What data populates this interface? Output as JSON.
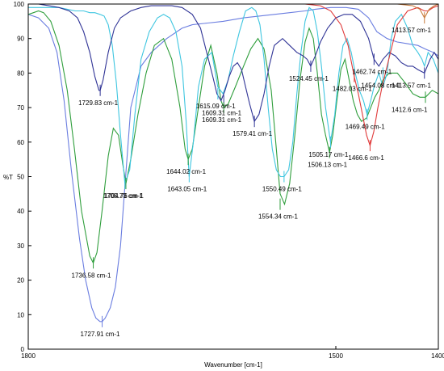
{
  "chart_data": {
    "type": "line",
    "xlabel": "Wavenumber [cm-1]",
    "ylabel": "%T",
    "xlim": [
      1800,
      1400
    ],
    "ylim": [
      0,
      100
    ],
    "x_reversed": true,
    "grid": false,
    "x_ticks": [
      {
        "value": 1800,
        "label": "1800"
      },
      {
        "value": 1500,
        "label": "1500"
      },
      {
        "value": 1400,
        "label": "1400"
      }
    ],
    "y_ticks": [
      {
        "value": 0,
        "label": "0"
      },
      {
        "value": 10,
        "label": "10"
      },
      {
        "value": 20,
        "label": "20"
      },
      {
        "value": 30,
        "label": "30"
      },
      {
        "value": 40,
        "label": "40"
      },
      {
        "value": 50,
        "label": "50"
      },
      {
        "value": 60,
        "label": "60"
      },
      {
        "value": 70,
        "label": "70"
      },
      {
        "value": 80,
        "label": "80"
      },
      {
        "value": 90,
        "label": "90"
      },
      {
        "value": 100,
        "label": "100"
      }
    ],
    "series": [
      {
        "color": "#6a7de0",
        "x": [
          1800,
          1790,
          1780,
          1772,
          1765,
          1758,
          1750,
          1744,
          1738,
          1734,
          1730,
          1727.91,
          1725,
          1720,
          1715,
          1710,
          1705,
          1700,
          1690,
          1680,
          1665,
          1650,
          1640,
          1625,
          1610,
          1590,
          1575,
          1560,
          1545,
          1530,
          1520,
          1505,
          1490,
          1478,
          1468,
          1460,
          1450,
          1440,
          1430,
          1420,
          1413,
          1405,
          1400
        ],
        "y": [
          97,
          96,
          93,
          86,
          72,
          52,
          32,
          20,
          12,
          9,
          8,
          8,
          9,
          12,
          18,
          30,
          50,
          70,
          82,
          86,
          90,
          93,
          94,
          94.5,
          95,
          96,
          96.5,
          97,
          97.5,
          98,
          98.5,
          99,
          99,
          98.5,
          96,
          92,
          90,
          89,
          88.5,
          88,
          87,
          86,
          85
        ]
      },
      {
        "color": "#2f9e3c",
        "x": [
          1800,
          1795,
          1790,
          1785,
          1778,
          1770,
          1762,
          1755,
          1748,
          1740,
          1736.58,
          1733,
          1728,
          1722,
          1717,
          1712,
          1708,
          1704.76,
          1700,
          1693,
          1685,
          1677,
          1668,
          1660,
          1652,
          1647,
          1644.02,
          1640,
          1635,
          1628,
          1622,
          1616,
          1612,
          1609.31,
          1605,
          1598,
          1590,
          1583,
          1576,
          1570,
          1563,
          1558,
          1554.34,
          1550,
          1545,
          1540,
          1535,
          1530,
          1526,
          1522,
          1518,
          1514,
          1510,
          1506.13,
          1503,
          1499,
          1495,
          1491,
          1487,
          1483,
          1479,
          1475,
          1470,
          1466,
          1462,
          1458,
          1454,
          1448,
          1440,
          1432,
          1425,
          1418,
          1412.6,
          1406,
          1400
        ],
        "y": [
          97,
          97.5,
          98,
          97.5,
          95,
          88,
          75,
          58,
          40,
          27,
          25,
          28,
          40,
          56,
          64,
          62,
          54,
          48,
          55,
          68,
          80,
          88,
          90,
          84,
          70,
          58,
          55,
          58,
          68,
          82,
          88,
          80,
          72,
          70,
          71,
          76,
          82,
          87,
          90,
          87,
          75,
          58,
          45,
          42,
          48,
          62,
          78,
          89,
          93,
          90,
          80,
          68,
          62,
          57,
          62,
          72,
          81,
          84,
          78,
          72,
          68,
          66,
          67,
          70,
          73,
          75,
          78,
          80,
          80,
          77,
          74,
          73,
          73,
          75,
          74
        ]
      },
      {
        "color": "#3fc6e0",
        "x": [
          1800,
          1790,
          1780,
          1770,
          1762,
          1754,
          1746,
          1740,
          1735,
          1730,
          1726,
          1722,
          1718,
          1714,
          1710,
          1705.73,
          1701,
          1696,
          1690,
          1682,
          1674,
          1668,
          1662,
          1656,
          1650,
          1646,
          1643.05,
          1639,
          1634,
          1628,
          1621,
          1615.09,
          1610,
          1605,
          1600,
          1594,
          1588,
          1582,
          1578,
          1574,
          1570,
          1566,
          1562,
          1558,
          1554,
          1550.49,
          1546,
          1542,
          1538,
          1534,
          1530,
          1526,
          1522,
          1518,
          1514,
          1510,
          1505.17,
          1501,
          1497,
          1493,
          1489,
          1485,
          1481,
          1477,
          1473,
          1469.49,
          1466,
          1462.74,
          1458,
          1454.08,
          1450,
          1446,
          1442,
          1436,
          1430,
          1425,
          1420,
          1416,
          1413.57,
          1410,
          1405,
          1400
        ],
        "y": [
          99,
          99,
          99,
          99,
          98.5,
          98,
          98,
          97.5,
          97.5,
          97,
          96.5,
          94,
          88,
          77,
          62,
          48,
          52,
          68,
          84,
          92,
          96,
          97,
          96,
          92,
          82,
          66,
          50,
          60,
          76,
          84,
          86,
          76,
          74,
          78,
          85,
          92,
          98,
          99,
          98,
          94,
          84,
          70,
          58,
          52,
          50,
          50,
          52,
          60,
          74,
          86,
          95,
          99,
          98,
          92,
          82,
          70,
          60,
          68,
          80,
          88,
          90,
          86,
          80,
          75,
          72,
          68,
          72,
          76,
          80,
          76,
          80,
          90,
          95,
          97,
          93,
          88,
          86,
          84,
          82,
          86,
          84,
          80
        ]
      },
      {
        "color": "#303496",
        "x": [
          1800,
          1790,
          1780,
          1770,
          1760,
          1752,
          1746,
          1740,
          1735,
          1731,
          1729.83,
          1727,
          1722,
          1716,
          1710,
          1700,
          1690,
          1680,
          1670,
          1660,
          1650,
          1640,
          1632,
          1626,
          1620,
          1616,
          1612,
          1608,
          1604,
          1600,
          1596,
          1592,
          1588,
          1584,
          1579.41,
          1575,
          1570,
          1565,
          1560,
          1552,
          1545,
          1538,
          1532,
          1528,
          1524.45,
          1520,
          1515,
          1508,
          1500,
          1492,
          1484,
          1476,
          1468,
          1462.74,
          1458,
          1454,
          1448,
          1442,
          1436,
          1430,
          1425,
          1420,
          1413.57,
          1408,
          1404,
          1400
        ],
        "y": [
          100,
          100,
          99.5,
          99,
          98,
          96,
          92,
          86,
          79,
          75,
          75,
          78,
          86,
          93,
          96,
          98,
          99,
          99.5,
          99.5,
          99.5,
          99,
          97,
          93,
          86,
          79,
          74,
          72,
          75,
          79,
          82,
          83,
          81,
          76,
          71,
          66,
          68,
          74,
          82,
          88,
          90,
          88,
          86,
          85,
          84,
          82,
          85,
          89,
          93,
          96,
          97,
          97,
          95,
          90,
          84,
          82,
          84,
          86,
          85,
          83,
          82,
          82,
          81,
          80,
          84,
          86,
          84
        ]
      },
      {
        "color": "#e03a3a",
        "x": [
          1800,
          1700,
          1600,
          1560,
          1530,
          1515,
          1505,
          1495,
          1488,
          1482.03,
          1478,
          1474,
          1470,
          1466.6,
          1463,
          1459,
          1455,
          1450,
          1445,
          1440,
          1430,
          1420,
          1413.57,
          1410,
          1405,
          1400
        ],
        "y": [
          100,
          100,
          100,
          100,
          100,
          99.5,
          98,
          94,
          88,
          79,
          74,
          68,
          62,
          59,
          63,
          70,
          76,
          82,
          88,
          94,
          98,
          99,
          98,
          98,
          99,
          99.5
        ]
      },
      {
        "color": "#c87a3a",
        "x": [
          1800,
          1700,
          1600,
          1500,
          1440,
          1425,
          1418,
          1413.57,
          1409,
          1404,
          1400
        ],
        "y": [
          100,
          100,
          100,
          100,
          100,
          99.5,
          98.5,
          96,
          98.5,
          99.5,
          100
        ]
      }
    ],
    "annotations": [
      {
        "text": "1729.83 cm-1",
        "x": 1729.83,
        "y": 75,
        "color": "#303496"
      },
      {
        "text": "1704.76 cm-1",
        "x": 1704.76,
        "y": 48,
        "color": "#2f9e3c"
      },
      {
        "text": "1705.73 cm-1",
        "x": 1705.73,
        "y": 48,
        "color": "#3fc6e0"
      },
      {
        "text": "1736.58 cm-1",
        "x": 1736.58,
        "y": 25,
        "color": "#2f9e3c"
      },
      {
        "text": "1727.91 cm-1",
        "x": 1727.91,
        "y": 8,
        "color": "#6a7de0"
      },
      {
        "text": "1644.02 cm-1",
        "x": 1644.02,
        "y": 55,
        "color": "#2f9e3c"
      },
      {
        "text": "1643.05 cm-1",
        "x": 1643.05,
        "y": 50,
        "color": "#3fc6e0"
      },
      {
        "text": "1615.09 cm-1",
        "x": 1615.09,
        "y": 74,
        "color": "#3fc6e0"
      },
      {
        "text": "1609.31 cm-1",
        "x": 1609.31,
        "y": 72,
        "color": "#303496"
      },
      {
        "text": "1609.31 cm-1",
        "x": 1609.31,
        "y": 70,
        "color": "#2f9e3c"
      },
      {
        "text": "1579.41 cm-1",
        "x": 1579.41,
        "y": 66,
        "color": "#303496"
      },
      {
        "text": "1550.49 cm-1",
        "x": 1550.49,
        "y": 50,
        "color": "#3fc6e0"
      },
      {
        "text": "1554.34 cm-1",
        "x": 1554.34,
        "y": 42,
        "color": "#2f9e3c"
      },
      {
        "text": "1524.45 cm-1",
        "x": 1524.45,
        "y": 82,
        "color": "#303496"
      },
      {
        "text": "1505.17 cm-1",
        "x": 1505.17,
        "y": 60,
        "color": "#3fc6e0"
      },
      {
        "text": "1506.13 cm-1",
        "x": 1506.13,
        "y": 57,
        "color": "#2f9e3c"
      },
      {
        "text": "1482.03 cm-1",
        "x": 1482.03,
        "y": 79,
        "color": "#e03a3a"
      },
      {
        "text": "1469.49 cm-1",
        "x": 1469.49,
        "y": 68,
        "color": "#3fc6e0"
      },
      {
        "text": "1466.6 cm-1",
        "x": 1466.6,
        "y": 59,
        "color": "#e03a3a"
      },
      {
        "text": "1462.74 cm-1",
        "x": 1462.74,
        "y": 84,
        "color": "#303496"
      },
      {
        "text": "1454.08 cm-1",
        "x": 1454.08,
        "y": 80,
        "color": "#3fc6e0"
      },
      {
        "text": "1413.57 cm-1",
        "x": 1413.57,
        "y": 96,
        "color": "#c87a3a"
      },
      {
        "text": "1413.57 cm-1",
        "x": 1413.57,
        "y": 80,
        "color": "#303496"
      },
      {
        "text": "1412.6 cm-1",
        "x": 1412.6,
        "y": 73,
        "color": "#2f9e3c"
      }
    ]
  }
}
